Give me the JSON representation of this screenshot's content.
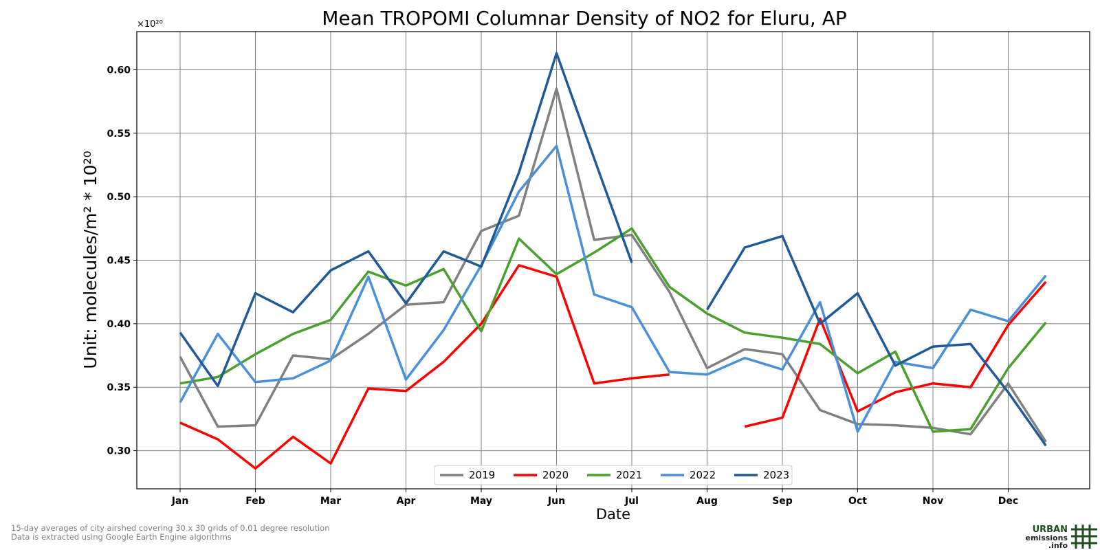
{
  "chart_data": {
    "type": "line",
    "title": "Mean TROPOMI Columnar Density of NO2 for Eluru, AP",
    "xlabel": "Date",
    "ylabel": "Unit: molecules/m² * 10²⁰",
    "multiplier": "×10²⁰",
    "categories": [
      "Jan",
      "Feb",
      "Mar",
      "Apr",
      "May",
      "Jun",
      "Jul",
      "Aug",
      "Sep",
      "Oct",
      "Nov",
      "Dec"
    ],
    "x": [
      "Jan",
      "mid-Jan",
      "Feb",
      "mid-Feb",
      "Mar",
      "mid-Mar",
      "Apr",
      "mid-Apr",
      "May",
      "mid-May",
      "Jun",
      "mid-Jun",
      "Jul",
      "mid-Jul",
      "Aug",
      "mid-Aug",
      "Sep",
      "mid-Sep",
      "Oct",
      "mid-Oct",
      "Nov",
      "mid-Nov",
      "Dec",
      "mid-Dec"
    ],
    "y_ticks": [
      "0.30",
      "0.35",
      "0.40",
      "0.45",
      "0.50",
      "0.55",
      "0.60"
    ],
    "ylim": [
      0.27,
      0.63
    ],
    "grid": true,
    "legend_position": "bottom-center",
    "series": [
      {
        "name": "2019",
        "color": "#808080",
        "values": [
          0.374,
          0.319,
          0.32,
          0.375,
          0.372,
          0.392,
          0.415,
          0.417,
          0.473,
          0.485,
          0.585,
          0.466,
          0.47,
          0.425,
          0.365,
          0.38,
          0.376,
          0.332,
          0.321,
          0.32,
          0.318,
          0.313,
          0.353,
          0.307
        ]
      },
      {
        "name": "2020",
        "color": "#ff0000",
        "values": [
          0.322,
          0.309,
          0.286,
          0.311,
          0.29,
          0.349,
          0.347,
          0.37,
          0.4,
          0.446,
          0.437,
          0.353,
          0.357,
          0.36,
          null,
          0.319,
          0.326,
          0.404,
          0.331,
          0.346,
          0.353,
          0.35,
          0.399,
          0.433
        ]
      },
      {
        "name": "2021",
        "color": "#4aa02c",
        "values": [
          0.353,
          0.358,
          0.376,
          0.392,
          0.403,
          0.441,
          0.43,
          0.443,
          0.394,
          0.467,
          0.439,
          0.456,
          0.475,
          0.429,
          0.408,
          0.393,
          0.389,
          0.384,
          0.361,
          0.378,
          0.315,
          0.317,
          0.365,
          0.401
        ]
      },
      {
        "name": "2022",
        "color": "#4a90d9",
        "values": [
          0.338,
          0.392,
          0.354,
          0.357,
          0.371,
          0.437,
          0.356,
          0.395,
          0.446,
          0.504,
          0.54,
          0.423,
          0.413,
          0.362,
          0.36,
          0.373,
          0.364,
          0.417,
          0.315,
          0.37,
          0.365,
          0.411,
          0.402,
          0.438
        ]
      },
      {
        "name": "2023",
        "color": "#1f5a96",
        "values": [
          0.393,
          0.351,
          0.424,
          0.409,
          0.442,
          0.457,
          0.416,
          0.457,
          0.445,
          0.519,
          0.613,
          0.53,
          0.448,
          null,
          0.411,
          0.46,
          0.469,
          0.4,
          0.424,
          0.367,
          0.382,
          0.384,
          0.346,
          0.304
        ]
      }
    ]
  },
  "footnote": {
    "line1": "15-day averages of city airshed covering 30 x 30 grids of 0.01 degree resolution",
    "line2": "Data is extracted using Google Earth Engine algorithms"
  },
  "logo": {
    "line1": "URBAN",
    "line2": "emissions",
    "line3": ".info"
  }
}
